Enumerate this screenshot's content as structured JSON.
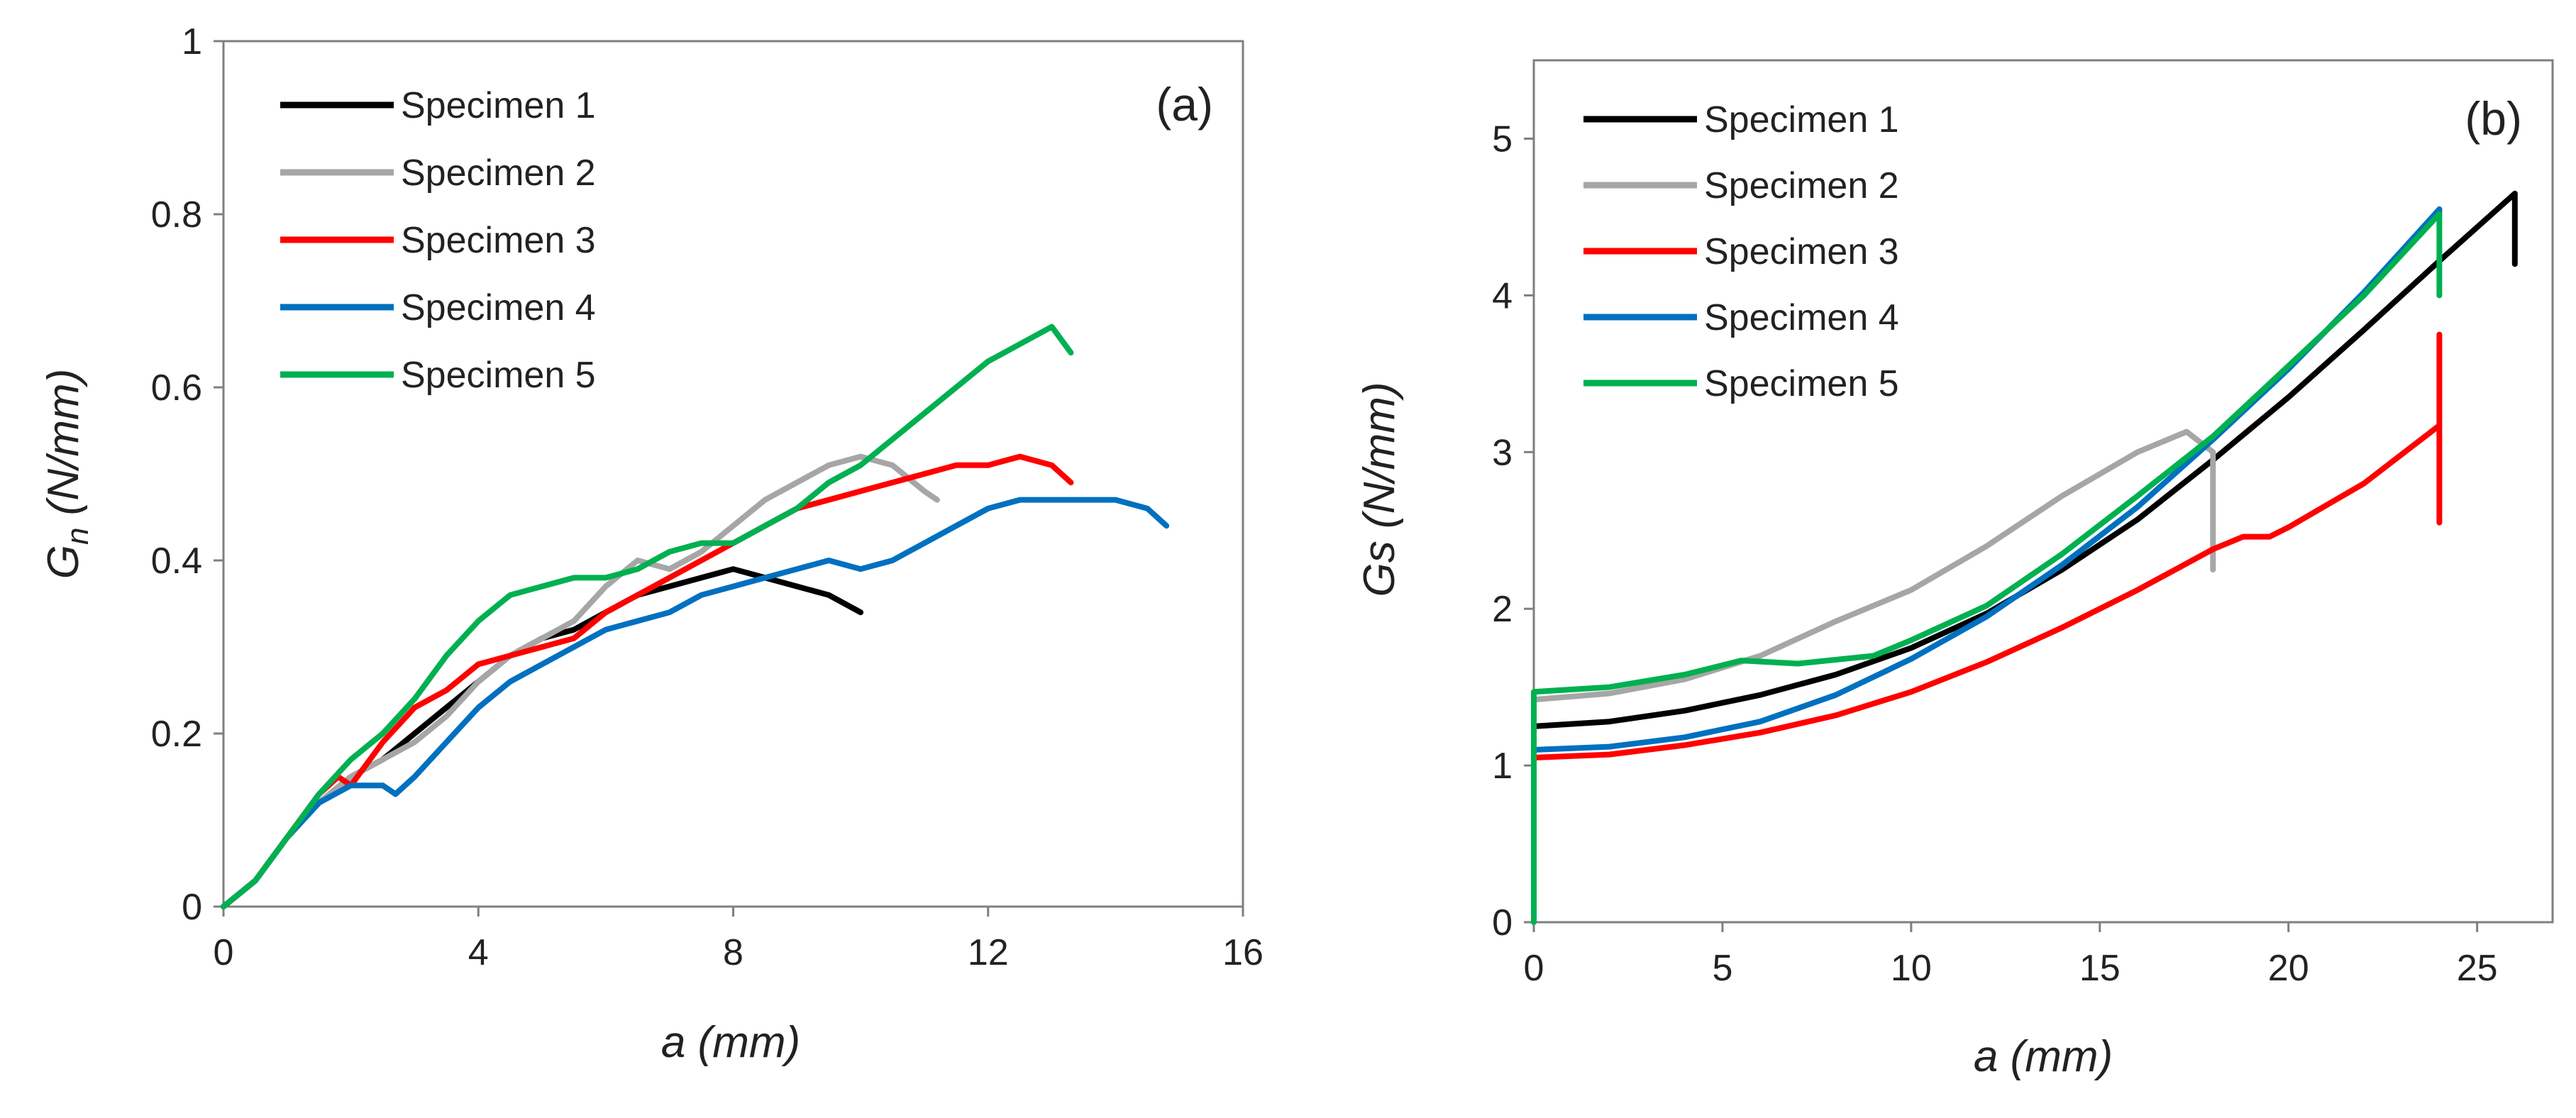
{
  "chart_data": [
    {
      "type": "line",
      "panel_label": "(a)",
      "xlabel": "a (mm)",
      "ylabel_main": "G",
      "ylabel_sub": "n",
      "ylabel_rest": " (N/mm)",
      "xlim": [
        0,
        16
      ],
      "ylim": [
        0,
        1
      ],
      "xticks": [
        0,
        4,
        8,
        12,
        16
      ],
      "yticks": [
        0,
        0.2,
        0.4,
        0.6,
        0.8,
        1
      ],
      "ytick_labels": [
        "0",
        "0.2",
        "0.4",
        "0.6",
        "0.8",
        "1"
      ],
      "legend_position": "top-left",
      "series": [
        {
          "name": "Specimen 1",
          "color": "#000000",
          "x": [
            0,
            0.5,
            1,
            1.5,
            2,
            2.5,
            3,
            3.5,
            4,
            4.5,
            5,
            5.5,
            6,
            6.5,
            7,
            7.5,
            8,
            8.5,
            9,
            9.5,
            10
          ],
          "y": [
            0,
            0.03,
            0.08,
            0.12,
            0.15,
            0.17,
            0.2,
            0.23,
            0.26,
            0.29,
            0.31,
            0.32,
            0.34,
            0.36,
            0.37,
            0.38,
            0.39,
            0.38,
            0.37,
            0.36,
            0.34
          ]
        },
        {
          "name": "Specimen 2",
          "color": "#a6a6a6",
          "x": [
            0,
            0.5,
            1,
            1.5,
            2,
            2.5,
            3,
            3.5,
            4,
            4.5,
            5,
            5.5,
            6,
            6.5,
            7,
            7.5,
            8,
            8.5,
            9,
            9.5,
            10,
            10.5,
            11,
            11.2
          ],
          "y": [
            0,
            0.03,
            0.08,
            0.12,
            0.15,
            0.17,
            0.19,
            0.22,
            0.26,
            0.29,
            0.31,
            0.33,
            0.37,
            0.4,
            0.39,
            0.41,
            0.44,
            0.47,
            0.49,
            0.51,
            0.52,
            0.51,
            0.48,
            0.47
          ]
        },
        {
          "name": "Specimen 3",
          "color": "#ff0000",
          "x": [
            0,
            0.5,
            1,
            1.5,
            1.8,
            2,
            2.5,
            3,
            3.5,
            4,
            4.5,
            5,
            5.5,
            6,
            6.5,
            7,
            7.5,
            8,
            8.5,
            9,
            9.5,
            10,
            10.5,
            11,
            11.5,
            12,
            12.5,
            13,
            13.3
          ],
          "y": [
            0,
            0.03,
            0.08,
            0.13,
            0.15,
            0.14,
            0.19,
            0.23,
            0.25,
            0.28,
            0.29,
            0.3,
            0.31,
            0.34,
            0.36,
            0.38,
            0.4,
            0.42,
            0.44,
            0.46,
            0.47,
            0.48,
            0.49,
            0.5,
            0.51,
            0.51,
            0.52,
            0.51,
            0.49
          ]
        },
        {
          "name": "Specimen 4",
          "color": "#0070c0",
          "x": [
            0,
            0.5,
            1,
            1.5,
            2,
            2.5,
            2.7,
            3,
            3.5,
            4,
            4.5,
            5,
            5.5,
            6,
            6.5,
            7,
            7.5,
            8,
            8.5,
            9,
            9.5,
            10,
            10.5,
            11,
            11.5,
            12,
            12.5,
            13,
            13.5,
            14,
            14.5,
            14.8
          ],
          "y": [
            0,
            0.03,
            0.08,
            0.12,
            0.14,
            0.14,
            0.13,
            0.15,
            0.19,
            0.23,
            0.26,
            0.28,
            0.3,
            0.32,
            0.33,
            0.34,
            0.36,
            0.37,
            0.38,
            0.39,
            0.4,
            0.39,
            0.4,
            0.42,
            0.44,
            0.46,
            0.47,
            0.47,
            0.47,
            0.47,
            0.46,
            0.44
          ]
        },
        {
          "name": "Specimen 5",
          "color": "#00b050",
          "x": [
            0,
            0.5,
            1,
            1.5,
            2,
            2.5,
            3,
            3.5,
            4,
            4.5,
            5,
            5.5,
            6,
            6.5,
            7,
            7.5,
            8,
            8.5,
            9,
            9.5,
            10,
            10.5,
            11,
            11.5,
            12,
            12.5,
            13,
            13.3
          ],
          "y": [
            0,
            0.03,
            0.08,
            0.13,
            0.17,
            0.2,
            0.24,
            0.29,
            0.33,
            0.36,
            0.37,
            0.38,
            0.38,
            0.39,
            0.41,
            0.42,
            0.42,
            0.44,
            0.46,
            0.49,
            0.51,
            0.54,
            0.57,
            0.6,
            0.63,
            0.65,
            0.67,
            0.64
          ]
        }
      ]
    },
    {
      "type": "line",
      "panel_label": "(b)",
      "xlabel": "a (mm)",
      "ylabel": "Gs (N/mm)",
      "xlim": [
        0,
        27
      ],
      "ylim": [
        0,
        5.5
      ],
      "xticks": [
        0,
        5,
        10,
        15,
        20,
        25
      ],
      "yticks": [
        0,
        1,
        2,
        3,
        4,
        5
      ],
      "legend_position": "top-left",
      "series": [
        {
          "name": "Specimen 1",
          "color": "#000000",
          "x": [
            0,
            2,
            4,
            6,
            8,
            10,
            12,
            14,
            16,
            18,
            20,
            22,
            24,
            26,
            26,
            26
          ],
          "y": [
            1.25,
            1.28,
            1.35,
            1.45,
            1.58,
            1.75,
            1.97,
            2.25,
            2.57,
            2.95,
            3.35,
            3.78,
            4.22,
            4.65,
            4.45,
            4.2
          ]
        },
        {
          "name": "Specimen 2",
          "color": "#a6a6a6",
          "x": [
            0,
            2,
            4,
            6,
            8,
            10,
            12,
            14,
            16,
            17.3,
            18,
            18,
            18
          ],
          "y": [
            1.42,
            1.46,
            1.55,
            1.7,
            1.92,
            2.12,
            2.4,
            2.72,
            3.0,
            3.13,
            3.0,
            2.65,
            2.25
          ]
        },
        {
          "name": "Specimen 3",
          "color": "#ff0000",
          "x": [
            0,
            2,
            4,
            6,
            8,
            10,
            12,
            14,
            16,
            18,
            18.8,
            19.5,
            20,
            22,
            24,
            24,
            24,
            24,
            24
          ],
          "y": [
            1.05,
            1.07,
            1.13,
            1.21,
            1.32,
            1.47,
            1.66,
            1.88,
            2.12,
            2.38,
            2.46,
            2.46,
            2.52,
            2.8,
            3.17,
            3.75,
            3.17,
            2.8,
            2.55
          ]
        },
        {
          "name": "Specimen 4",
          "color": "#0070c0",
          "x": [
            0,
            2,
            4,
            6,
            8,
            10,
            12,
            14,
            16,
            18,
            20,
            22,
            24,
            24
          ],
          "y": [
            1.1,
            1.12,
            1.18,
            1.28,
            1.45,
            1.68,
            1.95,
            2.28,
            2.65,
            3.08,
            3.53,
            4.02,
            4.55,
            4.5
          ]
        },
        {
          "name": "Specimen 5",
          "color": "#00b050",
          "x": [
            0,
            0,
            2,
            4,
            5.5,
            7,
            9,
            10,
            12,
            14,
            16,
            18,
            20,
            22,
            24,
            24,
            24
          ],
          "y": [
            0,
            1.47,
            1.5,
            1.58,
            1.67,
            1.65,
            1.7,
            1.8,
            2.02,
            2.35,
            2.72,
            3.1,
            3.55,
            4.0,
            4.52,
            4.3,
            4.0
          ]
        }
      ]
    }
  ]
}
